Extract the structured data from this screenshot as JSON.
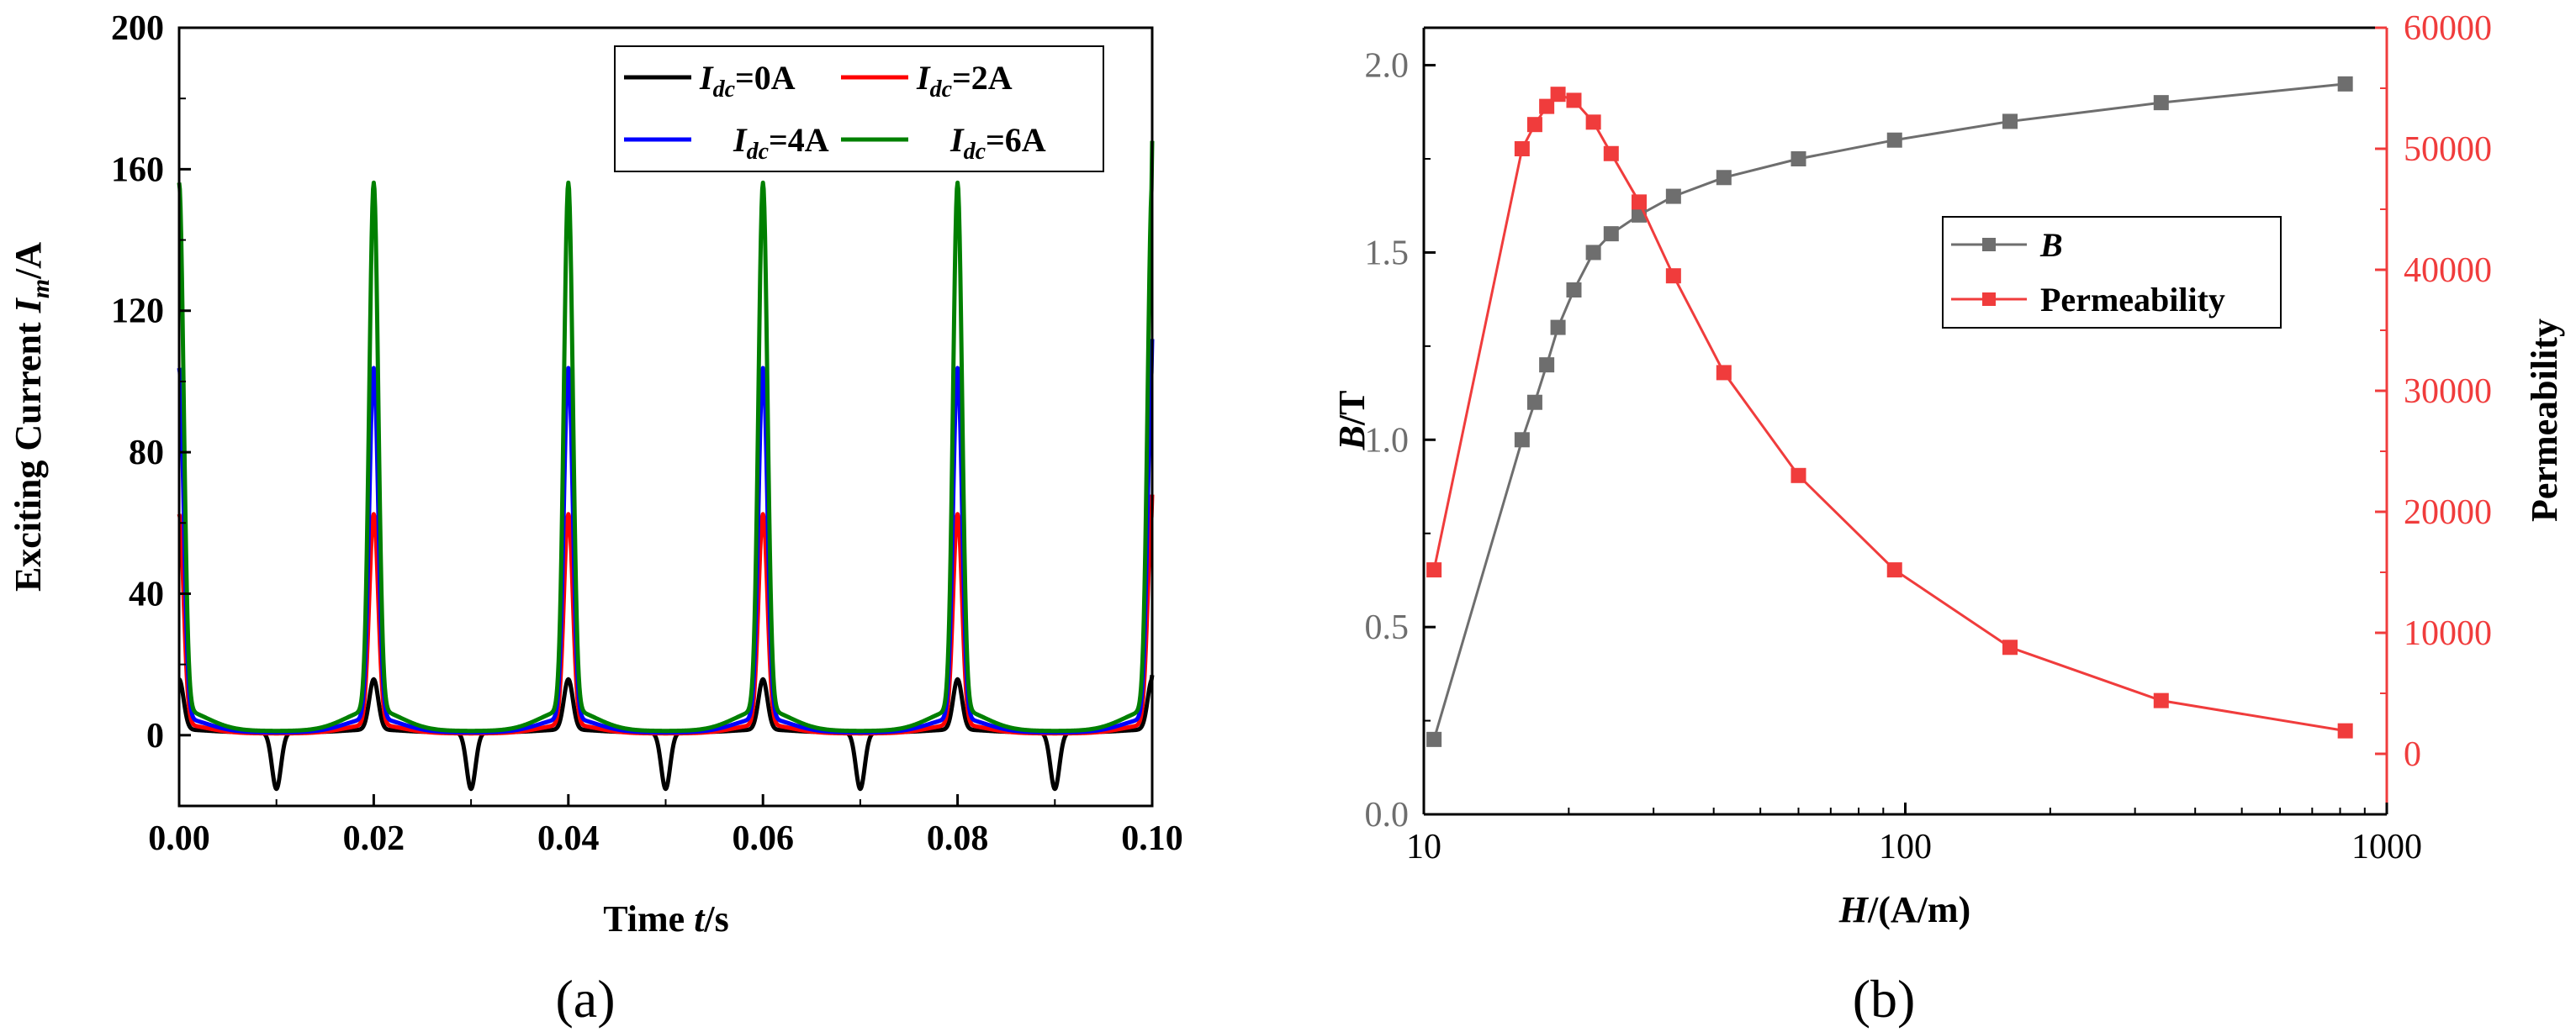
{
  "chart_data": [
    {
      "panel": "a",
      "type": "line",
      "caption": "(a)",
      "title": "",
      "xlabel": {
        "main": "Time ",
        "italic": "t",
        "unit": "/s"
      },
      "ylabel": {
        "main": "Exciting Current ",
        "italic": "I",
        "sub": "m",
        "unit": "/A"
      },
      "xlim": [
        0,
        0.1
      ],
      "ylim": [
        -20,
        200
      ],
      "xticks": [
        "0.00",
        "0.02",
        "0.04",
        "0.06",
        "0.08",
        "0.10"
      ],
      "yticks": [
        "0",
        "40",
        "80",
        "120",
        "160",
        "200"
      ],
      "legend_position": "top-right",
      "series": [
        {
          "name": "I_dc=0A",
          "label_italic": "I",
          "label_sub": "dc",
          "label_rest": "=0A",
          "color": "#000000",
          "peak": 15,
          "trough": -16,
          "base": 0.8,
          "start": 14,
          "end": 17
        },
        {
          "name": "I_dc=2A",
          "label_italic": "I",
          "label_sub": "dc",
          "label_rest": "=2A",
          "color": "#ff0000",
          "peak": 62,
          "trough": 0.5,
          "base": 2.5,
          "start": 59,
          "end": 68
        },
        {
          "name": "I_dc=4A",
          "label_italic": "I",
          "label_sub": "dc",
          "label_rest": "=4A",
          "color": "#0000ff",
          "peak": 103,
          "trough": 0.8,
          "base": 4,
          "start": 97,
          "end": 112
        },
        {
          "name": "I_dc=6A",
          "label_italic": "I",
          "label_sub": "dc",
          "label_rest": "=6A",
          "color": "#008000",
          "peak": 155,
          "trough": 1.2,
          "base": 6,
          "start": 145,
          "end": 168
        }
      ]
    },
    {
      "panel": "b",
      "type": "line",
      "caption": "(b)",
      "xlabel": {
        "italic": "H",
        "unit": "/(A/m)"
      },
      "ylabel_left": {
        "italic": "B",
        "unit": "/T"
      },
      "ylabel_right": "Permeability",
      "xscale": "log",
      "xlim": [
        10,
        1000
      ],
      "ylim_left": [
        0,
        2.1
      ],
      "ylim_right": [
        -5000,
        60000
      ],
      "xticks": [
        "10",
        "100",
        "1000"
      ],
      "yticks_left": [
        "0.0",
        "0.5",
        "1.0",
        "1.5",
        "2.0"
      ],
      "yticks_right": [
        "0",
        "10000",
        "20000",
        "30000",
        "40000",
        "50000",
        "60000"
      ],
      "legend_position": "center-right",
      "x": [
        10.5,
        16,
        17,
        18,
        19,
        20.5,
        22.5,
        24.5,
        28,
        33,
        42,
        60,
        95,
        165,
        340,
        820
      ],
      "series": [
        {
          "name": "B",
          "label_italic": "B",
          "axis": "left",
          "color": "#6e6e6e",
          "values": [
            0.2,
            1.0,
            1.1,
            1.2,
            1.3,
            1.4,
            1.5,
            1.55,
            1.6,
            1.65,
            1.7,
            1.75,
            1.8,
            1.85,
            1.9,
            1.95
          ]
        },
        {
          "name": "Permeability",
          "axis": "right",
          "color": "#f03c3c",
          "values": [
            15200,
            50000,
            52000,
            53500,
            54500,
            54000,
            52200,
            49600,
            45600,
            39500,
            31500,
            23000,
            15200,
            8800,
            4400,
            1900
          ]
        }
      ]
    }
  ]
}
